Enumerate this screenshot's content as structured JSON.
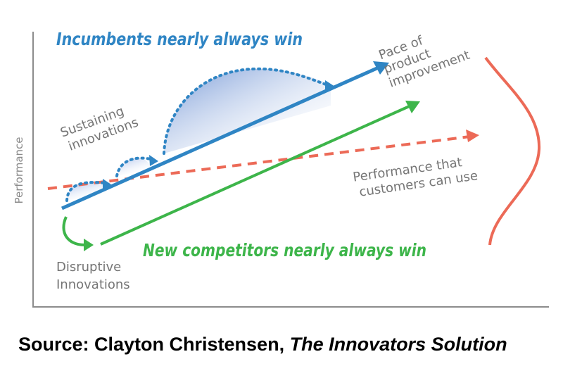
{
  "diagram": {
    "title_incumbents": "Incumbents nearly always win",
    "title_new_competitors": "New competitors nearly always win",
    "axis_label": "Performance",
    "pace_label": [
      "Pace of",
      "product",
      "improvement"
    ],
    "customers_label": [
      "Performance that",
      "customers can use"
    ],
    "sustaining_label": [
      "Sustaining",
      "innovations"
    ],
    "disruptive_label": [
      "Disruptive",
      "Innovations"
    ]
  },
  "source": {
    "prefix": "Source: Clayton Christensen, ",
    "book": "The Innovators Solution"
  },
  "colors": {
    "incumbent_blue": "#2f85c4",
    "new_green": "#3db54a",
    "customer_red": "#ec6a57",
    "axis_gray": "#8c8c8c"
  }
}
